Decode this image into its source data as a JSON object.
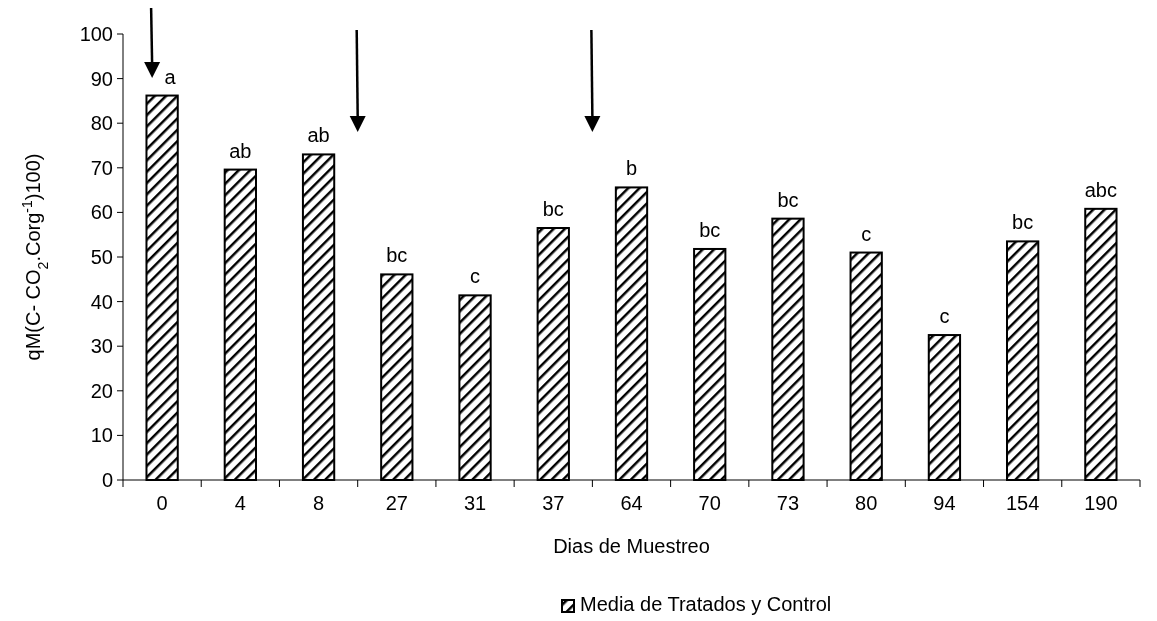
{
  "chart_data": {
    "type": "bar",
    "xlabel": "Dias de Muestreo",
    "ylabel": "qM(C- CO$_{2}$.Corg$^{-1}$)100)",
    "categories": [
      "0",
      "4",
      "8",
      "27",
      "31",
      "37",
      "64",
      "70",
      "73",
      "80",
      "94",
      "154",
      "190"
    ],
    "series": [
      {
        "name": "Media de Tratados y Control",
        "color": "#000000",
        "values": [
          86.2,
          69.6,
          73.0,
          46.1,
          41.4,
          56.5,
          65.6,
          51.8,
          58.6,
          51.0,
          32.5,
          53.5,
          60.8
        ],
        "value_labels": [
          "a",
          "ab",
          "ab",
          "bc",
          "c",
          "bc",
          "b",
          "bc",
          "bc",
          "c",
          "c",
          "bc",
          "abc"
        ]
      }
    ],
    "ylim": [
      0,
      100
    ],
    "yticks": [
      0,
      10,
      20,
      30,
      40,
      50,
      60,
      70,
      80,
      90,
      100
    ],
    "grid": false,
    "legend": "bottom"
  }
}
